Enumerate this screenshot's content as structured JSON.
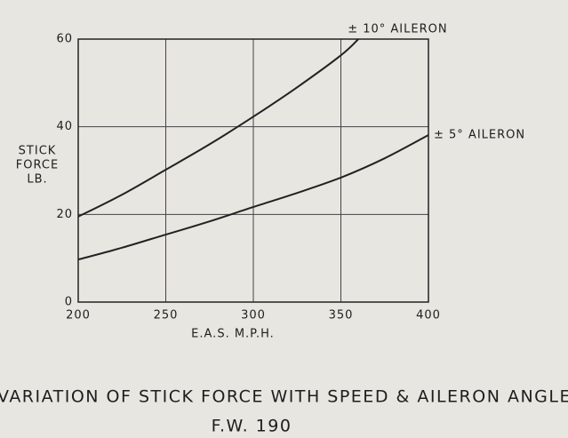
{
  "chart_data": {
    "type": "line",
    "title": "VARIATION OF STICK FORCE WITH SPEED & AILERON ANGLE",
    "subtitle": "F.W. 190",
    "xlabel": "E.A.S.   M.P.H.",
    "ylabel": [
      "STICK",
      "FORCE",
      "LB."
    ],
    "xlim": [
      200,
      400
    ],
    "ylim": [
      0,
      60
    ],
    "xticks": [
      200,
      250,
      300,
      350,
      400
    ],
    "yticks": [
      0,
      20,
      40,
      60
    ],
    "grid": true,
    "series": [
      {
        "name": "± 10° AILERON",
        "color": "#222222",
        "x": [
          200,
          225,
          250,
          275,
          300,
          325,
          350,
          360
        ],
        "values": [
          19.5,
          24.5,
          30.2,
          36,
          42.3,
          49,
          56.3,
          60
        ]
      },
      {
        "name": "± 5° AILERON",
        "color": "#222222",
        "x": [
          200,
          225,
          250,
          275,
          300,
          325,
          350,
          375,
          400
        ],
        "values": [
          9.7,
          12.4,
          15.4,
          18.4,
          21.7,
          24.9,
          28.4,
          32.8,
          38.1
        ]
      }
    ]
  }
}
